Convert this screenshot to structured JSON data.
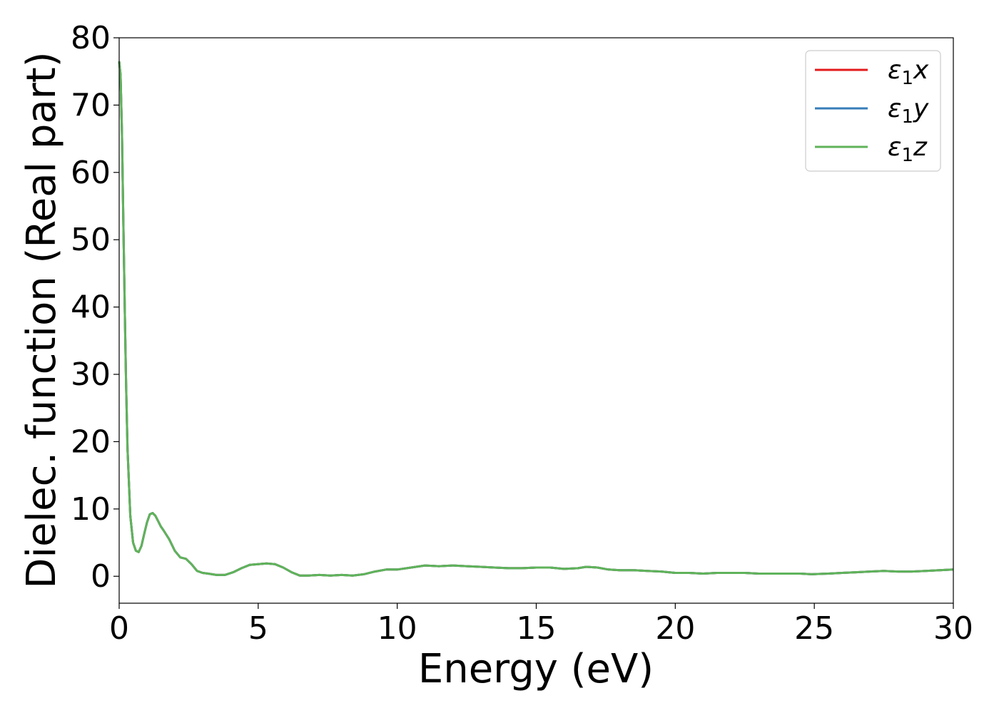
{
  "chart_data": {
    "type": "line",
    "title": "",
    "xlabel": "Energy (eV)",
    "ylabel": "Dielec. function (Real part)",
    "xlim": [
      0,
      30
    ],
    "ylim": [
      -4,
      80
    ],
    "xticks": [
      0,
      5,
      10,
      15,
      20,
      25,
      30
    ],
    "yticks": [
      0,
      10,
      20,
      30,
      40,
      50,
      60,
      70,
      80
    ],
    "grid": false,
    "legend": "top-right",
    "series": [
      {
        "name": "ε1x",
        "legend_base": "ε",
        "legend_sub": "1",
        "legend_axis": "x",
        "color": "#e41a1c",
        "x": [
          0,
          0.05,
          0.1,
          0.15,
          0.2,
          0.25,
          0.3,
          0.4,
          0.5,
          0.6,
          0.7,
          0.8,
          0.9,
          1.0,
          1.1,
          1.2,
          1.3,
          1.4,
          1.5,
          1.6,
          1.8,
          2.0,
          2.2,
          2.4,
          2.6,
          2.8,
          3.0,
          3.2,
          3.5,
          3.8,
          4.1,
          4.4,
          4.7,
          5.0,
          5.3,
          5.6,
          5.9,
          6.2,
          6.5,
          6.8,
          7.2,
          7.6,
          8.0,
          8.4,
          8.8,
          9.2,
          9.6,
          10.0,
          10.5,
          11.0,
          11.5,
          12.0,
          12.5,
          13.0,
          13.5,
          14.0,
          14.5,
          15.0,
          15.5,
          16.0,
          16.5,
          16.8,
          17.2,
          17.6,
          18.0,
          18.5,
          19.0,
          19.5,
          20.0,
          20.5,
          21.0,
          21.5,
          22.0,
          22.5,
          23.0,
          23.5,
          24.0,
          24.5,
          24.9,
          25.5,
          26.0,
          26.5,
          27.0,
          27.5,
          28.0,
          28.5,
          29.0,
          29.5,
          30.0
        ],
        "y": [
          76.5,
          74.5,
          66.0,
          53.0,
          40.0,
          28.5,
          19.0,
          9.0,
          5.0,
          3.8,
          3.6,
          4.5,
          6.3,
          8.0,
          9.2,
          9.4,
          9.0,
          8.2,
          7.4,
          6.8,
          5.5,
          3.8,
          2.8,
          2.6,
          1.8,
          0.8,
          0.5,
          0.4,
          0.2,
          0.2,
          0.6,
          1.2,
          1.7,
          1.8,
          1.9,
          1.8,
          1.3,
          0.6,
          0.1,
          0.1,
          0.2,
          0.1,
          0.2,
          0.1,
          0.3,
          0.7,
          1.0,
          1.0,
          1.3,
          1.6,
          1.5,
          1.6,
          1.5,
          1.4,
          1.3,
          1.2,
          1.2,
          1.3,
          1.3,
          1.1,
          1.2,
          1.4,
          1.3,
          1.0,
          0.9,
          0.9,
          0.8,
          0.7,
          0.5,
          0.5,
          0.4,
          0.5,
          0.5,
          0.5,
          0.4,
          0.4,
          0.4,
          0.4,
          0.3,
          0.4,
          0.5,
          0.6,
          0.7,
          0.8,
          0.7,
          0.7,
          0.8,
          0.9,
          1.0
        ]
      },
      {
        "name": "ε1y",
        "legend_base": "ε",
        "legend_sub": "1",
        "legend_axis": "y",
        "color": "#377eb8",
        "x": [
          0,
          0.05,
          0.1,
          0.15,
          0.2,
          0.25,
          0.3,
          0.4,
          0.5,
          0.6,
          0.7,
          0.8,
          0.9,
          1.0,
          1.1,
          1.2,
          1.3,
          1.4,
          1.5,
          1.6,
          1.8,
          2.0,
          2.2,
          2.4,
          2.6,
          2.8,
          3.0,
          3.2,
          3.5,
          3.8,
          4.1,
          4.4,
          4.7,
          5.0,
          5.3,
          5.6,
          5.9,
          6.2,
          6.5,
          6.8,
          7.2,
          7.6,
          8.0,
          8.4,
          8.8,
          9.2,
          9.6,
          10.0,
          10.5,
          11.0,
          11.5,
          12.0,
          12.5,
          13.0,
          13.5,
          14.0,
          14.5,
          15.0,
          15.5,
          16.0,
          16.5,
          16.8,
          17.2,
          17.6,
          18.0,
          18.5,
          19.0,
          19.5,
          20.0,
          20.5,
          21.0,
          21.5,
          22.0,
          22.5,
          23.0,
          23.5,
          24.0,
          24.5,
          24.9,
          25.5,
          26.0,
          26.5,
          27.0,
          27.5,
          28.0,
          28.5,
          29.0,
          29.5,
          30.0
        ],
        "y": [
          76.5,
          74.5,
          66.0,
          53.0,
          40.0,
          28.5,
          19.0,
          9.0,
          5.0,
          3.8,
          3.6,
          4.5,
          6.3,
          8.0,
          9.2,
          9.4,
          9.0,
          8.2,
          7.4,
          6.8,
          5.5,
          3.8,
          2.8,
          2.6,
          1.8,
          0.8,
          0.5,
          0.4,
          0.2,
          0.2,
          0.6,
          1.2,
          1.7,
          1.8,
          1.9,
          1.8,
          1.3,
          0.6,
          0.1,
          0.1,
          0.2,
          0.1,
          0.2,
          0.1,
          0.3,
          0.7,
          1.0,
          1.0,
          1.3,
          1.6,
          1.5,
          1.6,
          1.5,
          1.4,
          1.3,
          1.2,
          1.2,
          1.3,
          1.3,
          1.1,
          1.2,
          1.4,
          1.3,
          1.0,
          0.9,
          0.9,
          0.8,
          0.7,
          0.5,
          0.5,
          0.4,
          0.5,
          0.5,
          0.5,
          0.4,
          0.4,
          0.4,
          0.4,
          0.3,
          0.4,
          0.5,
          0.6,
          0.7,
          0.8,
          0.7,
          0.7,
          0.8,
          0.9,
          1.0
        ]
      },
      {
        "name": "ε1z",
        "legend_base": "ε",
        "legend_sub": "1",
        "legend_axis": "z",
        "color": "#5fb35a",
        "x": [
          0,
          0.05,
          0.1,
          0.15,
          0.2,
          0.25,
          0.3,
          0.4,
          0.5,
          0.6,
          0.7,
          0.8,
          0.9,
          1.0,
          1.1,
          1.2,
          1.3,
          1.4,
          1.5,
          1.6,
          1.8,
          2.0,
          2.2,
          2.4,
          2.6,
          2.8,
          3.0,
          3.2,
          3.5,
          3.8,
          4.1,
          4.4,
          4.7,
          5.0,
          5.3,
          5.6,
          5.9,
          6.2,
          6.5,
          6.8,
          7.2,
          7.6,
          8.0,
          8.4,
          8.8,
          9.2,
          9.6,
          10.0,
          10.5,
          11.0,
          11.5,
          12.0,
          12.5,
          13.0,
          13.5,
          14.0,
          14.5,
          15.0,
          15.5,
          16.0,
          16.5,
          16.8,
          17.2,
          17.6,
          18.0,
          18.5,
          19.0,
          19.5,
          20.0,
          20.5,
          21.0,
          21.5,
          22.0,
          22.5,
          23.0,
          23.5,
          24.0,
          24.5,
          24.9,
          25.5,
          26.0,
          26.5,
          27.0,
          27.5,
          28.0,
          28.5,
          29.0,
          29.5,
          30.0
        ],
        "y": [
          76.5,
          74.5,
          66.0,
          53.0,
          40.0,
          28.5,
          19.0,
          9.0,
          5.0,
          3.8,
          3.6,
          4.5,
          6.3,
          8.0,
          9.2,
          9.4,
          9.0,
          8.2,
          7.4,
          6.8,
          5.5,
          3.8,
          2.8,
          2.6,
          1.8,
          0.8,
          0.5,
          0.4,
          0.2,
          0.2,
          0.6,
          1.2,
          1.7,
          1.8,
          1.9,
          1.8,
          1.3,
          0.6,
          0.1,
          0.1,
          0.2,
          0.1,
          0.2,
          0.1,
          0.3,
          0.7,
          1.0,
          1.0,
          1.3,
          1.6,
          1.5,
          1.6,
          1.5,
          1.4,
          1.3,
          1.2,
          1.2,
          1.3,
          1.3,
          1.1,
          1.2,
          1.4,
          1.3,
          1.0,
          0.9,
          0.9,
          0.8,
          0.7,
          0.5,
          0.5,
          0.4,
          0.5,
          0.5,
          0.5,
          0.4,
          0.4,
          0.4,
          0.4,
          0.3,
          0.4,
          0.5,
          0.6,
          0.7,
          0.8,
          0.7,
          0.7,
          0.8,
          0.9,
          1.0
        ]
      }
    ]
  }
}
